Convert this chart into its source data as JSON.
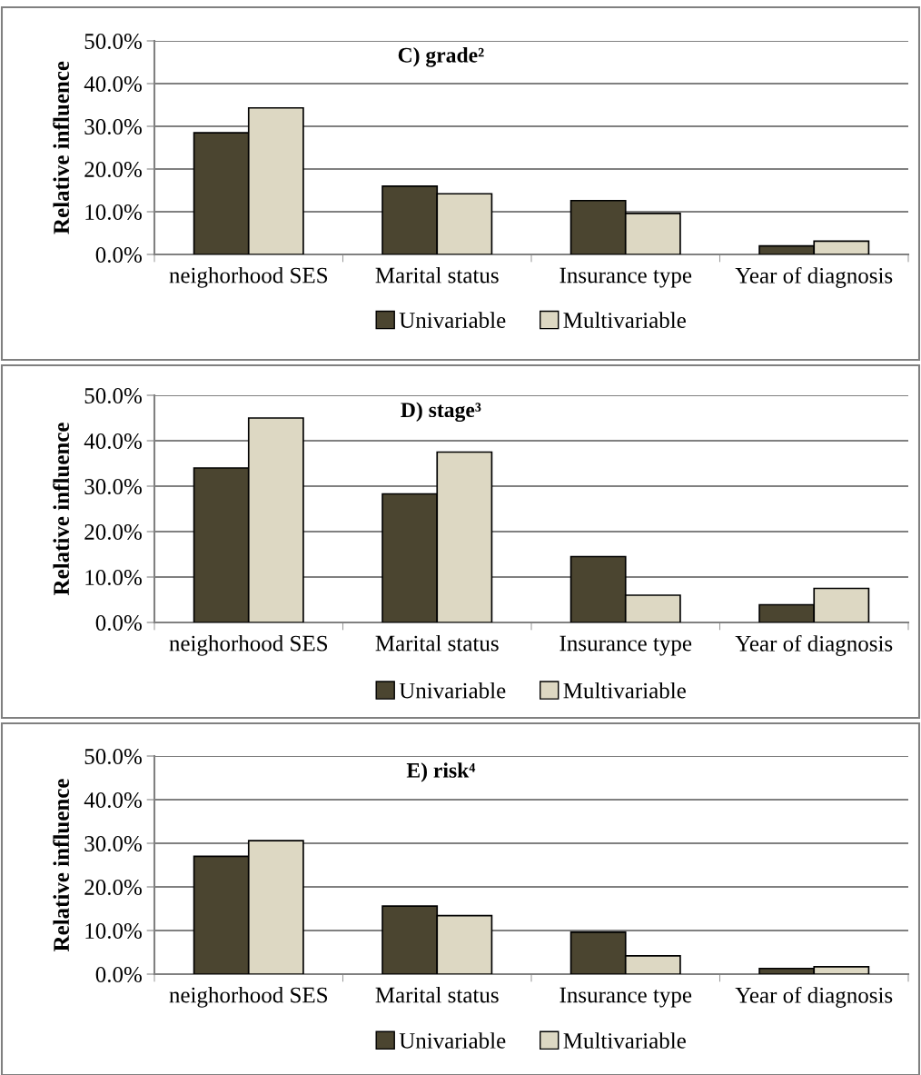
{
  "chart_data": [
    {
      "type": "bar",
      "title": "C) grade²",
      "ylabel": "Relative influence",
      "categories": [
        "neighorhood SES",
        "Marital status",
        "Insurance type",
        "Year of diagnosis"
      ],
      "series": [
        {
          "name": "Univariable",
          "color": "#4b4530",
          "values": [
            28.5,
            16.0,
            12.6,
            2.0
          ]
        },
        {
          "name": "Multivariable",
          "color": "#ddd8c3",
          "values": [
            34.3,
            14.2,
            9.6,
            3.1
          ]
        }
      ],
      "ylim": [
        0,
        50
      ],
      "yticks": [
        {
          "value": 0,
          "label": "0.0%"
        },
        {
          "value": 10,
          "label": "10.0%"
        },
        {
          "value": 20,
          "label": "20.0%"
        },
        {
          "value": 30,
          "label": "30.0%"
        },
        {
          "value": 40,
          "label": "40.0%"
        },
        {
          "value": 50,
          "label": "50.0%"
        }
      ],
      "grid": "y",
      "legend": "bottom"
    },
    {
      "type": "bar",
      "title": "D) stage³",
      "ylabel": "Relative influence",
      "categories": [
        "neighorhood SES",
        "Marital status",
        "Insurance type",
        "Year of diagnosis"
      ],
      "series": [
        {
          "name": "Univariable",
          "color": "#4b4530",
          "values": [
            34.0,
            28.3,
            14.5,
            3.9
          ]
        },
        {
          "name": "Multivariable",
          "color": "#ddd8c3",
          "values": [
            45.0,
            37.5,
            6.0,
            7.5
          ]
        }
      ],
      "ylim": [
        0,
        50
      ],
      "yticks": [
        {
          "value": 0,
          "label": "0.0%"
        },
        {
          "value": 10,
          "label": "10.0%"
        },
        {
          "value": 20,
          "label": "20.0%"
        },
        {
          "value": 30,
          "label": "30.0%"
        },
        {
          "value": 40,
          "label": "40.0%"
        },
        {
          "value": 50,
          "label": "50.0%"
        }
      ],
      "grid": "y",
      "legend": "bottom"
    },
    {
      "type": "bar",
      "title": "E) risk⁴",
      "ylabel": "Relative influence",
      "categories": [
        "neighorhood SES",
        "Marital status",
        "Insurance type",
        "Year of diagnosis"
      ],
      "series": [
        {
          "name": "Univariable",
          "color": "#4b4530",
          "values": [
            27.0,
            15.6,
            9.6,
            1.3
          ]
        },
        {
          "name": "Multivariable",
          "color": "#ddd8c3",
          "values": [
            30.6,
            13.4,
            4.2,
            1.7
          ]
        }
      ],
      "ylim": [
        0,
        50
      ],
      "yticks": [
        {
          "value": 0,
          "label": "0.0%"
        },
        {
          "value": 10,
          "label": "10.0%"
        },
        {
          "value": 20,
          "label": "20.0%"
        },
        {
          "value": 30,
          "label": "30.0%"
        },
        {
          "value": 40,
          "label": "40.0%"
        },
        {
          "value": 50,
          "label": "50.0%"
        }
      ],
      "grid": "y",
      "legend": "bottom"
    }
  ]
}
